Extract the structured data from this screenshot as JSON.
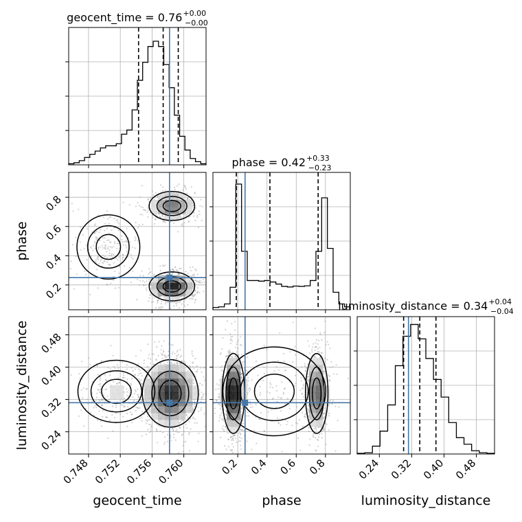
{
  "chart_data": {
    "type": "corner",
    "parameters": [
      "geocent_time",
      "phase",
      "luminosity_distance"
    ],
    "truths": {
      "geocent_time": 0.7582,
      "phase": 0.25,
      "luminosity_distance": 0.312
    },
    "colors": {
      "truth": "#4477aa",
      "hist": "#000000",
      "grid": "#b0b0b0",
      "scatter": "#9a9a9a"
    },
    "panel_titles": [
      {
        "name": "geocent_time",
        "text": "geocent_time = 0.76",
        "sup": "+0.00",
        "sub": "−0.00"
      },
      {
        "name": "phase",
        "text": "phase = 0.42",
        "sup": "+0.33",
        "sub": "−0.23"
      },
      {
        "name": "luminosity_distance",
        "text": "luminosity_distance = 0.34",
        "sup": "+0.04",
        "sub": "−0.04"
      }
    ],
    "axes": {
      "geocent_time": {
        "range": [
          0.7455,
          0.7628
        ],
        "ticks": [
          0.748,
          0.752,
          0.756,
          0.76
        ],
        "tick_labels": [
          "0.748",
          "0.752",
          "0.756",
          "0.760"
        ]
      },
      "phase": {
        "range": [
          0.03,
          0.97
        ],
        "ticks": [
          0.2,
          0.4,
          0.6,
          0.8
        ],
        "tick_labels": [
          "0.2",
          "0.4",
          "0.6",
          "0.8"
        ]
      },
      "luminosity_distance": {
        "range": [
          0.185,
          0.525
        ],
        "ticks": [
          0.24,
          0.32,
          0.4,
          0.48
        ],
        "tick_labels": [
          "0.24",
          "0.32",
          "0.40",
          "0.48"
        ]
      }
    },
    "histograms": {
      "geocent_time": {
        "bins": [
          0.7455,
          0.7628
        ],
        "counts": [
          1,
          2,
          4,
          7,
          10,
          13,
          16,
          18,
          18,
          20,
          29,
          33,
          52,
          80,
          97,
          112,
          117,
          112,
          95,
          73,
          47,
          27,
          14,
          6,
          3,
          1
        ],
        "quantiles": [
          0.7543,
          0.7574,
          0.7593
        ],
        "ymax": 130
      },
      "phase": {
        "bins": [
          0.03,
          0.97
        ],
        "counts": [
          8,
          10,
          20,
          77,
          430,
          200,
          100,
          100,
          98,
          100,
          95,
          88,
          80,
          78,
          81,
          80,
          82,
          100,
          200,
          383,
          210,
          60,
          20,
          10
        ],
        "quantiles": [
          0.19,
          0.42,
          0.75
        ],
        "ymax": 470
      },
      "luminosity_distance": {
        "bins": [
          0.185,
          0.525
        ],
        "counts": [
          1,
          2,
          12,
          35,
          75,
          135,
          180,
          198,
          176,
          146,
          114,
          87,
          48,
          25,
          15,
          5,
          2,
          1
        ],
        "quantiles": [
          0.3,
          0.34,
          0.38
        ],
        "ymax": 210
      }
    },
    "density_modes": {
      "phase_vs_geocent_time": [
        {
          "x": 0.7585,
          "y": 0.19,
          "sx": 0.0013,
          "sy": 0.045,
          "w": 0.52
        },
        {
          "x": 0.7585,
          "y": 0.74,
          "sx": 0.0013,
          "sy": 0.045,
          "w": 0.33
        },
        {
          "x": 0.7505,
          "y": 0.46,
          "sx": 0.0018,
          "sy": 0.1,
          "w": 0.15
        }
      ],
      "luminosity_distance_vs_geocent_time": [
        {
          "x": 0.7583,
          "y": 0.335,
          "sx": 0.0016,
          "sy": 0.038,
          "w": 0.85
        },
        {
          "x": 0.7515,
          "y": 0.34,
          "sx": 0.0022,
          "sy": 0.035,
          "w": 0.15
        }
      ],
      "luminosity_distance_vs_phase": [
        {
          "x": 0.17,
          "y": 0.335,
          "sx": 0.035,
          "sy": 0.045,
          "w": 0.55
        },
        {
          "x": 0.74,
          "y": 0.335,
          "sx": 0.035,
          "sy": 0.045,
          "w": 0.35
        },
        {
          "x": 0.45,
          "y": 0.34,
          "sx": 0.16,
          "sy": 0.05,
          "w": 0.1
        }
      ]
    }
  }
}
